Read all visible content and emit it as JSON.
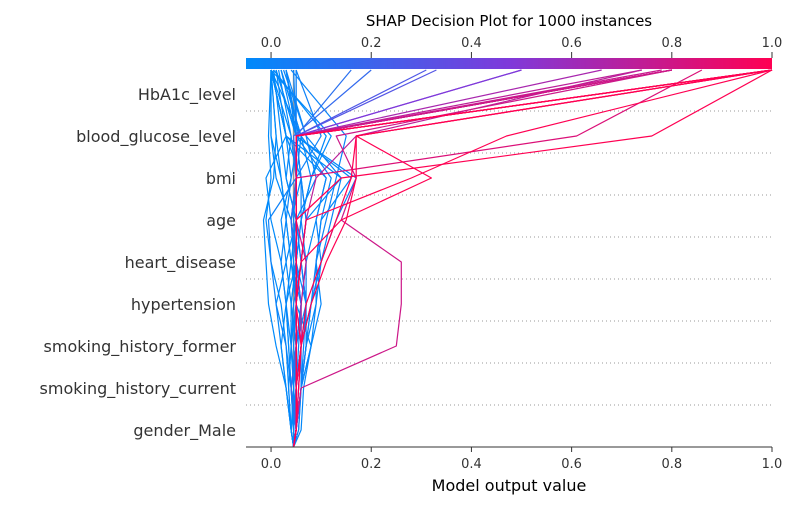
{
  "chart_data": {
    "type": "line",
    "title": "SHAP Decision Plot for 1000 instances",
    "xlabel": "Model output value",
    "xlim": [
      -0.05,
      1.0
    ],
    "x_ticks": [
      "0.0",
      "0.2",
      "0.4",
      "0.6",
      "0.8",
      "1.0"
    ],
    "x_tick_values": [
      0.0,
      0.2,
      0.4,
      0.6,
      0.8,
      1.0
    ],
    "colorbar_ticks": [
      "0.0",
      "0.2",
      "0.4",
      "0.6",
      "0.8",
      "1.0"
    ],
    "base_value": 0.045,
    "features_top_to_bottom": [
      "HbA1c_level",
      "blood_glucose_level",
      "bmi",
      "age",
      "heart_disease",
      "hypertension",
      "smoking_history_former",
      "smoking_history_current",
      "gender_Male"
    ],
    "colormap": [
      "#008afb",
      "#7f39da",
      "#ff0052"
    ],
    "series_note_order": "values listed from bottom (base) to top (final output)",
    "series": [
      {
        "values": [
          0.045,
          0.05,
          0.045,
          0.04,
          0.05,
          0.045,
          0.04,
          0.01,
          0.0,
          0.0
        ]
      },
      {
        "values": [
          0.045,
          0.04,
          0.035,
          0.03,
          0.02,
          0.0,
          -0.01,
          0.0,
          -0.005,
          0.0
        ]
      },
      {
        "values": [
          0.045,
          0.04,
          0.03,
          0.01,
          -0.005,
          -0.01,
          -0.015,
          0.005,
          0.01,
          0.0
        ]
      },
      {
        "values": [
          0.045,
          0.04,
          0.03,
          0.02,
          0.03,
          0.05,
          0.04,
          0.06,
          0.03,
          0.0
        ]
      },
      {
        "values": [
          0.045,
          0.05,
          0.06,
          0.08,
          0.05,
          0.04,
          0.03,
          0.02,
          0.01,
          0.0
        ]
      },
      {
        "values": [
          0.045,
          0.045,
          0.04,
          0.05,
          0.06,
          0.04,
          0.05,
          0.03,
          0.02,
          0.005
        ]
      },
      {
        "values": [
          0.045,
          0.04,
          0.03,
          0.02,
          0.01,
          0.03,
          0.02,
          0.04,
          0.03,
          0.01
        ]
      },
      {
        "values": [
          0.045,
          0.05,
          0.06,
          0.08,
          0.1,
          0.09,
          0.1,
          0.12,
          0.06,
          0.02
        ]
      },
      {
        "values": [
          0.045,
          0.05,
          0.04,
          0.05,
          0.04,
          0.03,
          0.05,
          0.03,
          0.04,
          0.015
        ]
      },
      {
        "values": [
          0.045,
          0.04,
          0.035,
          0.04,
          0.045,
          0.06,
          0.07,
          0.06,
          0.05,
          0.02
        ]
      },
      {
        "values": [
          0.045,
          0.045,
          0.05,
          0.05,
          0.07,
          0.06,
          0.05,
          0.09,
          0.07,
          0.03
        ]
      },
      {
        "values": [
          0.045,
          0.05,
          0.05,
          0.06,
          0.08,
          0.1,
          0.09,
          0.11,
          0.05,
          0.03
        ]
      },
      {
        "values": [
          0.045,
          0.045,
          0.05,
          0.045,
          0.05,
          0.06,
          0.07,
          0.14,
          0.03,
          0.0
        ]
      },
      {
        "values": [
          0.045,
          0.04,
          0.045,
          0.05,
          0.04,
          0.05,
          0.06,
          0.08,
          0.12,
          0.0
        ]
      },
      {
        "values": [
          0.045,
          0.05,
          0.045,
          0.04,
          0.04,
          0.05,
          0.06,
          0.08,
          0.11,
          0.005
        ]
      },
      {
        "values": [
          0.045,
          0.045,
          0.04,
          0.035,
          0.03,
          0.04,
          0.03,
          0.02,
          0.0,
          0.0
        ]
      },
      {
        "values": [
          0.045,
          0.05,
          0.06,
          0.07,
          0.08,
          0.09,
          0.11,
          0.13,
          0.15,
          0.04
        ]
      },
      {
        "values": [
          0.045,
          0.055,
          0.06,
          0.07,
          0.09,
          0.1,
          0.12,
          0.14,
          0.07,
          0.025
        ]
      },
      {
        "values": [
          0.045,
          0.06,
          0.065,
          0.08,
          0.09,
          0.09,
          0.1,
          0.16,
          0.05,
          0.01
        ]
      },
      {
        "values": [
          0.045,
          0.05,
          0.06,
          0.07,
          0.08,
          0.1,
          0.13,
          0.17,
          0.05,
          0.01
        ]
      },
      {
        "values": [
          0.045,
          0.045,
          0.05,
          0.05,
          0.06,
          0.07,
          0.09,
          0.11,
          0.03,
          0.0
        ]
      },
      {
        "values": [
          0.045,
          0.04,
          0.05,
          0.06,
          0.07,
          0.05,
          0.04,
          0.05,
          0.04,
          0.0
        ]
      },
      {
        "values": [
          0.045,
          0.05,
          0.04,
          0.05,
          0.06,
          0.05,
          0.04,
          0.05,
          0.045,
          0.2
        ]
      },
      {
        "values": [
          0.045,
          0.05,
          0.05,
          0.05,
          0.05,
          0.05,
          0.05,
          0.05,
          0.05,
          0.16
        ]
      },
      {
        "values": [
          0.045,
          0.05,
          0.06,
          0.065,
          0.07,
          0.06,
          0.07,
          0.06,
          0.05,
          0.03
        ]
      },
      {
        "values": [
          0.045,
          0.05,
          0.055,
          0.06,
          0.06,
          0.05,
          0.045,
          0.05,
          0.06,
          0.02
        ]
      },
      {
        "values": [
          0.045,
          0.05,
          0.05,
          0.055,
          0.06,
          0.05,
          0.05,
          0.05,
          0.05,
          0.045
        ]
      },
      {
        "values": [
          0.045,
          0.05,
          0.06,
          0.07,
          0.07,
          0.06,
          0.05,
          0.05,
          0.1,
          0.05
        ]
      },
      {
        "values": [
          0.045,
          0.055,
          0.06,
          0.06,
          0.07,
          0.07,
          0.06,
          0.06,
          0.05,
          0.05
        ]
      },
      {
        "values": [
          0.045,
          0.045,
          0.04,
          0.035,
          0.03,
          0.02,
          0.0,
          -0.01,
          0.03,
          0.0
        ]
      },
      {
        "values": [
          0.045,
          0.05,
          0.04,
          0.03,
          0.01,
          0.0,
          -0.005,
          0.05,
          0.05,
          0.05
        ]
      },
      {
        "values": [
          0.045,
          0.05,
          0.05,
          0.05,
          0.05,
          0.05,
          0.06,
          0.08,
          0.06,
          0.0
        ]
      },
      {
        "values": [
          0.045,
          0.045,
          0.05,
          0.04,
          0.03,
          0.02,
          0.03,
          0.04,
          0.055,
          0.03
        ]
      },
      {
        "values": [
          0.045,
          0.05,
          0.05,
          0.06,
          0.07,
          0.1,
          0.13,
          0.16,
          0.17,
          1.0
        ]
      },
      {
        "values": [
          0.045,
          0.05,
          0.05,
          0.06,
          0.08,
          0.11,
          0.15,
          0.17,
          0.17,
          1.0
        ]
      },
      {
        "values": [
          0.045,
          0.05,
          0.05,
          0.05,
          0.05,
          0.05,
          0.05,
          0.05,
          0.05,
          1.0
        ]
      },
      {
        "values": [
          0.045,
          0.05,
          0.05,
          0.05,
          0.05,
          0.05,
          0.05,
          0.05,
          0.05,
          1.0
        ]
      },
      {
        "values": [
          0.045,
          0.05,
          0.05,
          0.05,
          0.05,
          0.05,
          0.05,
          0.05,
          0.05,
          1.0
        ]
      },
      {
        "values": [
          0.045,
          0.05,
          0.05,
          0.05,
          0.05,
          0.05,
          0.05,
          0.05,
          0.05,
          1.0
        ]
      },
      {
        "values": [
          0.045,
          0.05,
          0.05,
          0.05,
          0.05,
          0.05,
          0.05,
          0.05,
          0.05,
          1.0
        ]
      },
      {
        "values": [
          0.045,
          0.05,
          0.05,
          0.05,
          0.05,
          0.05,
          0.05,
          0.05,
          0.05,
          0.8
        ]
      },
      {
        "values": [
          0.045,
          0.05,
          0.05,
          0.05,
          0.05,
          0.05,
          0.05,
          0.05,
          0.05,
          0.8
        ]
      },
      {
        "values": [
          0.045,
          0.05,
          0.05,
          0.05,
          0.05,
          0.05,
          0.05,
          0.05,
          0.05,
          0.8
        ]
      },
      {
        "values": [
          0.045,
          0.05,
          0.05,
          0.05,
          0.05,
          0.05,
          0.05,
          0.05,
          0.05,
          0.8
        ]
      },
      {
        "values": [
          0.045,
          0.05,
          0.05,
          0.05,
          0.05,
          0.05,
          0.05,
          0.05,
          0.05,
          0.8
        ]
      },
      {
        "values": [
          0.045,
          0.05,
          0.05,
          0.05,
          0.05,
          0.05,
          0.05,
          0.05,
          0.05,
          0.8
        ]
      },
      {
        "values": [
          0.045,
          0.05,
          0.05,
          0.05,
          0.05,
          0.05,
          0.05,
          0.05,
          0.05,
          0.74
        ]
      },
      {
        "values": [
          0.045,
          0.05,
          0.05,
          0.05,
          0.05,
          0.05,
          0.05,
          0.05,
          0.05,
          0.5
        ]
      },
      {
        "values": [
          0.045,
          0.05,
          0.05,
          0.05,
          0.05,
          0.05,
          0.05,
          0.05,
          0.05,
          0.5
        ]
      },
      {
        "values": [
          0.045,
          0.05,
          0.05,
          0.05,
          0.05,
          0.05,
          0.05,
          0.05,
          0.05,
          0.31
        ]
      },
      {
        "values": [
          0.045,
          0.05,
          0.05,
          0.05,
          0.05,
          0.05,
          0.05,
          0.05,
          0.05,
          0.33
        ]
      },
      {
        "values": [
          0.045,
          0.05,
          0.05,
          0.05,
          0.05,
          0.05,
          0.05,
          0.05,
          0.61,
          0.86
        ]
      },
      {
        "values": [
          0.045,
          0.05,
          0.05,
          0.05,
          0.05,
          0.05,
          0.05,
          0.14,
          0.76,
          1.0
        ]
      },
      {
        "values": [
          0.045,
          0.05,
          0.05,
          0.05,
          0.05,
          0.06,
          0.07,
          0.28,
          0.47,
          1.0
        ]
      },
      {
        "values": [
          0.045,
          0.05,
          0.055,
          0.06,
          0.05,
          0.06,
          0.14,
          0.32,
          0.17,
          1.0
        ]
      },
      {
        "values": [
          0.045,
          0.05,
          0.06,
          0.25,
          0.26,
          0.26,
          0.14,
          0.17,
          0.13,
          0.8
        ]
      },
      {
        "values": [
          0.045,
          0.05,
          0.055,
          0.06,
          0.06,
          0.07,
          0.05,
          0.05,
          0.05,
          0.78
        ]
      },
      {
        "values": [
          0.045,
          0.05,
          0.05,
          0.05,
          0.05,
          0.06,
          0.07,
          0.09,
          0.17,
          0.74
        ]
      },
      {
        "values": [
          0.045,
          0.05,
          0.05,
          0.05,
          0.05,
          0.05,
          0.05,
          0.05,
          0.05,
          0.66
        ]
      }
    ]
  }
}
